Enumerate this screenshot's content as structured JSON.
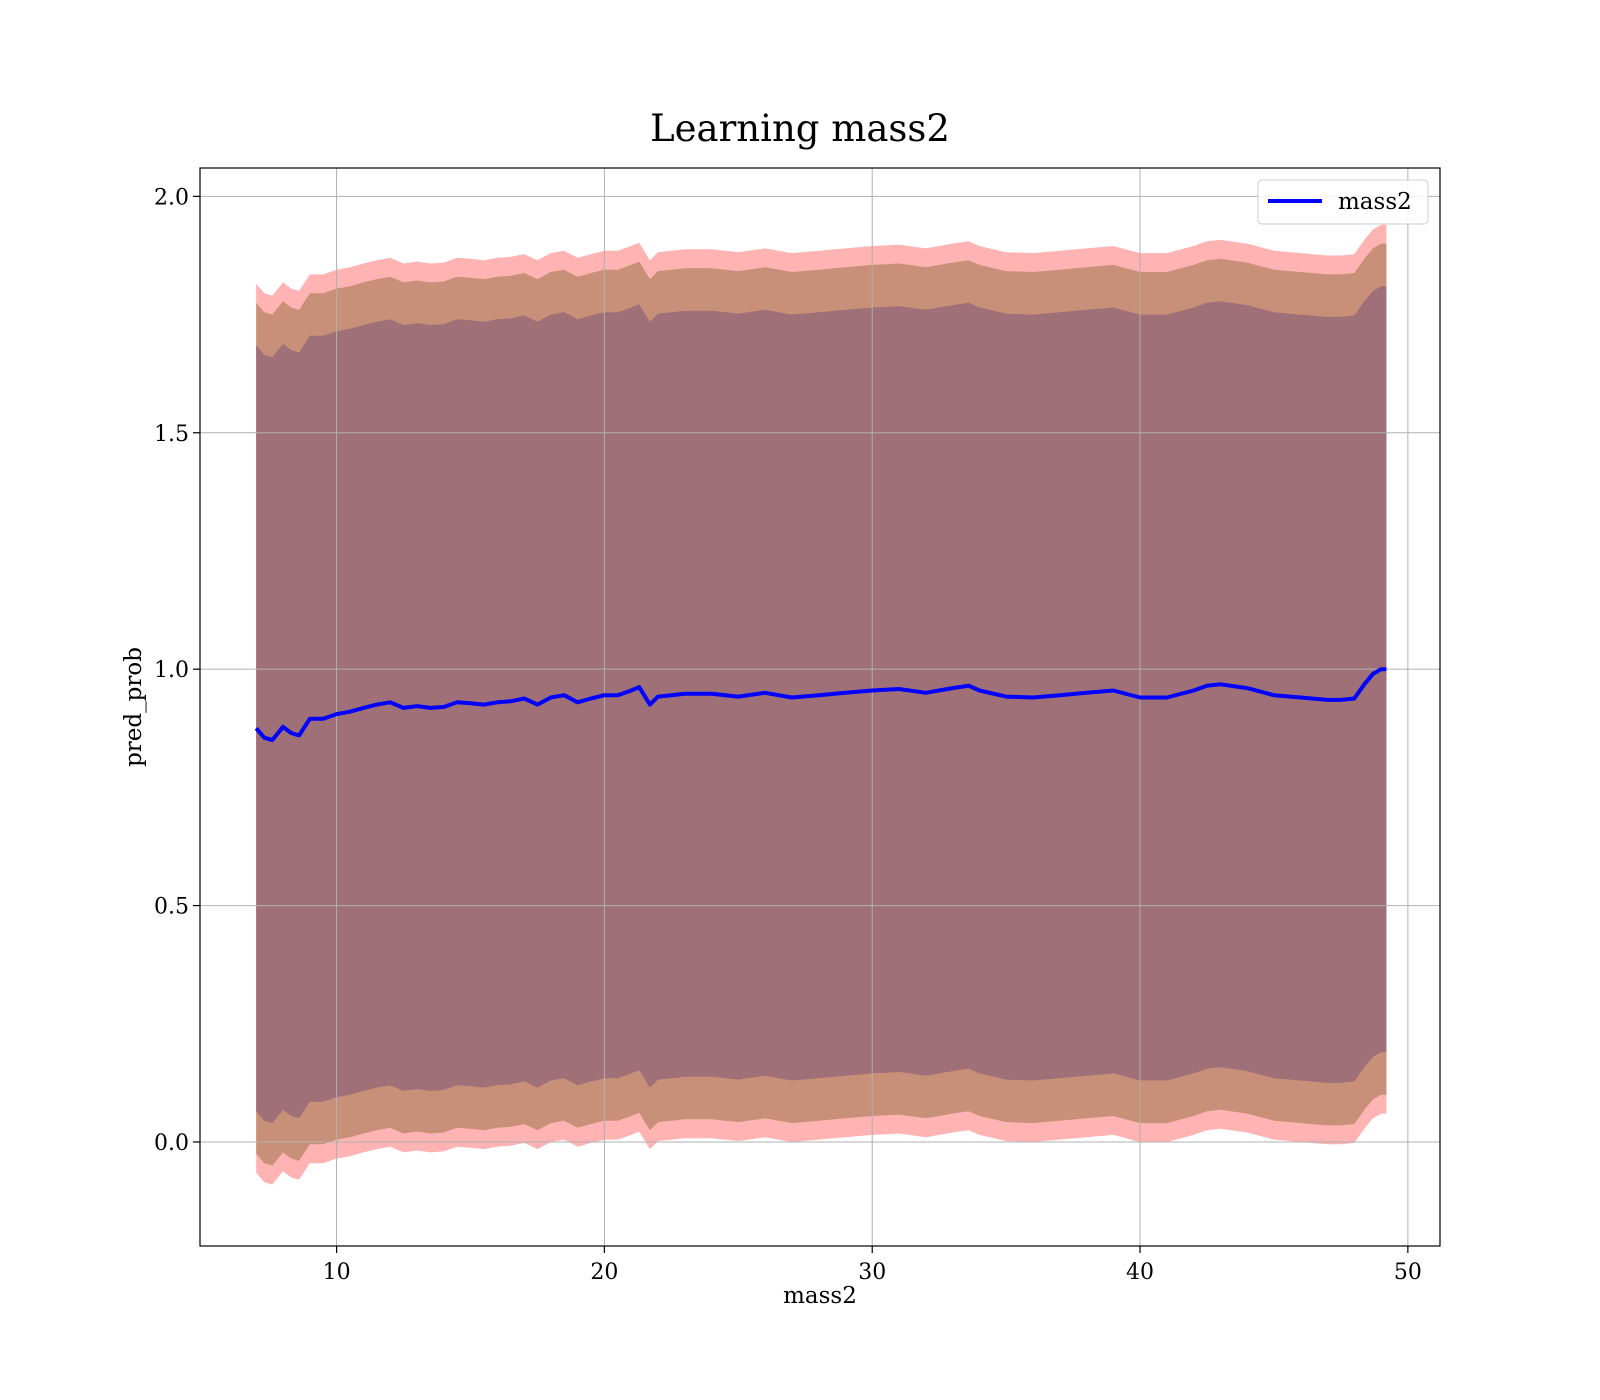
{
  "chart_data": {
    "type": "line",
    "title": "Learning mass2",
    "xlabel": "mass2",
    "ylabel": "pred_prob",
    "xlim": [
      4.9,
      51.2
    ],
    "ylim": [
      -0.22,
      2.06
    ],
    "xticks": [
      10,
      20,
      30,
      40,
      50
    ],
    "yticks": [
      0.0,
      0.5,
      1.0,
      1.5,
      2.0
    ],
    "xtick_labels": [
      "10",
      "20",
      "30",
      "40",
      "50"
    ],
    "ytick_labels": [
      "0.0",
      "0.5",
      "1.0",
      "1.5",
      "2.0"
    ],
    "grid": true,
    "legend": {
      "position": "top-right",
      "entries": [
        "mass2"
      ]
    },
    "colors": {
      "line": "#0000ff",
      "outer_band": "#ff9999",
      "middle_band": "#c89078",
      "inner_band": "#a07078"
    },
    "x": [
      7.0,
      7.3,
      7.6,
      8.0,
      8.3,
      8.6,
      9.0,
      9.5,
      10.0,
      10.5,
      11.0,
      11.5,
      12.0,
      12.5,
      13.0,
      13.5,
      14.0,
      14.5,
      15.0,
      15.5,
      16.0,
      16.5,
      17.0,
      17.5,
      18.0,
      18.5,
      19.0,
      19.5,
      20.0,
      20.5,
      21.0,
      21.3,
      21.7,
      22.0,
      22.5,
      23.0,
      24.0,
      25.0,
      26.0,
      27.0,
      28.0,
      29.0,
      30.0,
      31.0,
      32.0,
      33.0,
      33.6,
      34.0,
      35.0,
      36.0,
      37.0,
      38.0,
      39.0,
      40.0,
      41.0,
      42.0,
      42.5,
      43.0,
      44.0,
      45.0,
      46.0,
      47.0,
      47.5,
      48.0,
      48.4,
      48.7,
      49.0,
      49.2
    ],
    "series": [
      {
        "name": "mass2",
        "values": [
          0.875,
          0.855,
          0.85,
          0.878,
          0.865,
          0.86,
          0.895,
          0.895,
          0.905,
          0.91,
          0.918,
          0.925,
          0.93,
          0.918,
          0.922,
          0.918,
          0.92,
          0.93,
          0.928,
          0.925,
          0.93,
          0.932,
          0.938,
          0.925,
          0.94,
          0.945,
          0.93,
          0.938,
          0.945,
          0.945,
          0.955,
          0.962,
          0.925,
          0.942,
          0.945,
          0.948,
          0.948,
          0.942,
          0.95,
          0.94,
          0.945,
          0.95,
          0.955,
          0.958,
          0.95,
          0.96,
          0.965,
          0.955,
          0.942,
          0.94,
          0.945,
          0.95,
          0.955,
          0.94,
          0.94,
          0.955,
          0.965,
          0.968,
          0.96,
          0.945,
          0.94,
          0.935,
          0.935,
          0.938,
          0.97,
          0.99,
          1.0,
          1.0
        ]
      }
    ]
  }
}
